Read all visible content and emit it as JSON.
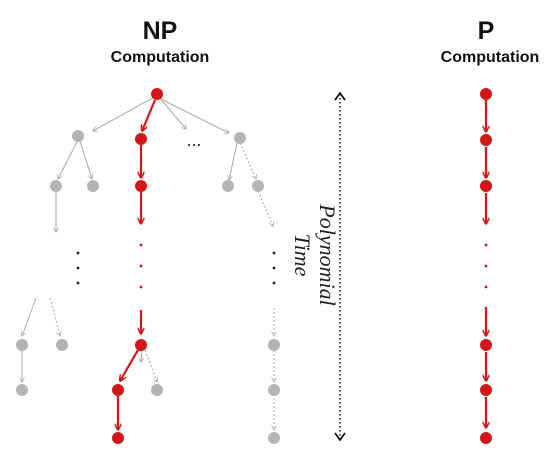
{
  "np": {
    "title": "NP",
    "subtitle": "Computation"
  },
  "p": {
    "title": "P",
    "subtitle": "Computation"
  },
  "time_label": {
    "line1": "Polynomial",
    "line2": "Time"
  },
  "ellipsis": "...",
  "colors": {
    "path": "#d0181a",
    "node_gray": "#b4b4b4",
    "edge_gray": "#a8a8a8",
    "text": "#111111"
  }
}
